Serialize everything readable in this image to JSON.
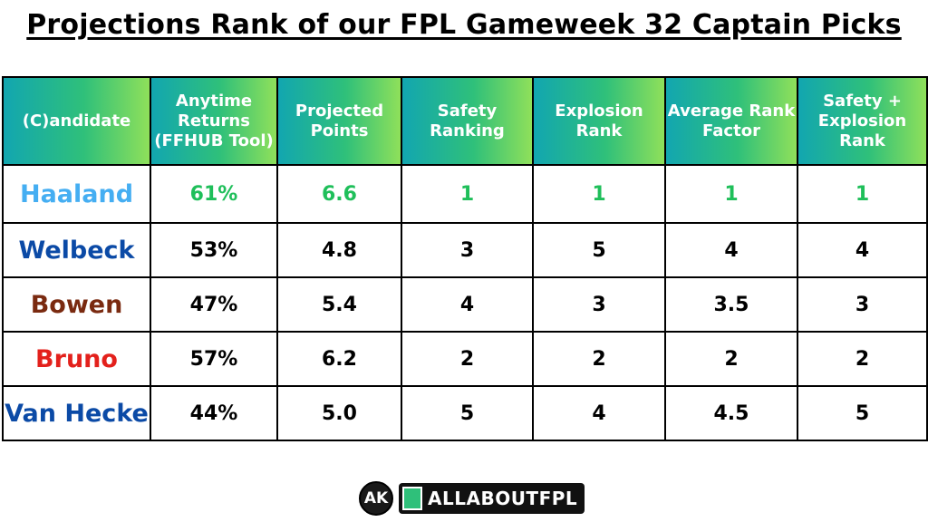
{
  "title": "Projections Rank of our FPL Gameweek 32 Captain Picks",
  "headers": [
    "(C)andidate",
    "Anytime Returns (FFHUB Tool)",
    "Projected Points",
    "Safety Ranking",
    "Explosion Rank",
    "Average Rank Factor",
    "Safety + Explosion Rank"
  ],
  "rows": [
    {
      "name": "Haaland",
      "name_color": "#45aef2",
      "values": [
        "61%",
        "6.6",
        "1",
        "1",
        "1",
        "1"
      ],
      "highlight": true
    },
    {
      "name": "Welbeck",
      "name_color": "#0b4aa6",
      "values": [
        "53%",
        "4.8",
        "3",
        "5",
        "4",
        "4"
      ],
      "highlight": false
    },
    {
      "name": "Bowen",
      "name_color": "#7a2a10",
      "values": [
        "47%",
        "5.4",
        "4",
        "3",
        "3.5",
        "3"
      ],
      "highlight": false
    },
    {
      "name": "Bruno",
      "name_color": "#e3211c",
      "values": [
        "57%",
        "6.2",
        "2",
        "2",
        "2",
        "2"
      ],
      "highlight": false
    },
    {
      "name": "Van Hecke",
      "name_color": "#0b4aa6",
      "values": [
        "44%",
        "5.0",
        "5",
        "4",
        "4.5",
        "5"
      ],
      "highlight": false
    }
  ],
  "colors": {
    "header_gradient": [
      "#12a6b0",
      "#2fc07a",
      "#8fe05a"
    ],
    "highlight": "#1fbf5a"
  },
  "footer": {
    "logo_initials": "AK",
    "brand": "ALLABOUTFPL",
    "icons": [
      "ak-logo-icon",
      "allaboutfpl-logo-icon"
    ]
  }
}
